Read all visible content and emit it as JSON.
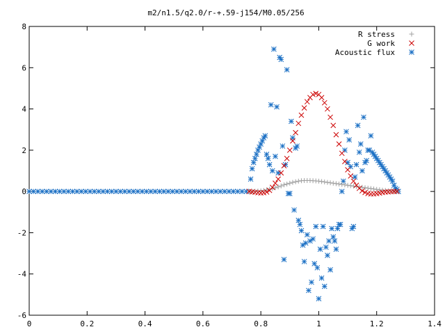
{
  "chart_data": {
    "type": "scatter",
    "title": "m2/n1.5/q2.0/r-+.59-j154/M0.05/256",
    "xlabel": "",
    "ylabel": "",
    "xlim": [
      0,
      1.4
    ],
    "ylim": [
      -6,
      8
    ],
    "xticks": [
      0,
      0.2,
      0.4,
      0.6,
      0.8,
      1,
      1.2,
      1.4
    ],
    "xtick_labels": [
      "0",
      "0.2",
      "0.4",
      "0.6",
      "0.8",
      "1",
      "1.2",
      "1.4"
    ],
    "yticks": [
      -6,
      -4,
      -2,
      0,
      2,
      4,
      6,
      8
    ],
    "ytick_labels": [
      "-6",
      "-4",
      "-2",
      "0",
      "2",
      "4",
      "6",
      "8"
    ],
    "grid": false,
    "legend_position": "top-right",
    "series": [
      {
        "name": "R stress",
        "marker": "plus",
        "color": "#a0a0a0",
        "points": [
          [
            0.76,
            0.0
          ],
          [
            0.77,
            0.0
          ],
          [
            0.78,
            0.01
          ],
          [
            0.79,
            0.02
          ],
          [
            0.8,
            0.03
          ],
          [
            0.81,
            0.05
          ],
          [
            0.82,
            0.08
          ],
          [
            0.83,
            0.11
          ],
          [
            0.84,
            0.14
          ],
          [
            0.85,
            0.18
          ],
          [
            0.86,
            0.22
          ],
          [
            0.87,
            0.27
          ],
          [
            0.88,
            0.32
          ],
          [
            0.89,
            0.36
          ],
          [
            0.9,
            0.4
          ],
          [
            0.91,
            0.44
          ],
          [
            0.92,
            0.47
          ],
          [
            0.93,
            0.5
          ],
          [
            0.94,
            0.52
          ],
          [
            0.95,
            0.53
          ],
          [
            0.96,
            0.53
          ],
          [
            0.97,
            0.53
          ],
          [
            0.98,
            0.52
          ],
          [
            0.99,
            0.51
          ],
          [
            1.0,
            0.5
          ],
          [
            1.01,
            0.48
          ],
          [
            1.02,
            0.46
          ],
          [
            1.03,
            0.44
          ],
          [
            1.04,
            0.42
          ],
          [
            1.05,
            0.4
          ],
          [
            1.06,
            0.38
          ],
          [
            1.07,
            0.36
          ],
          [
            1.08,
            0.34
          ],
          [
            1.09,
            0.32
          ],
          [
            1.1,
            0.3
          ],
          [
            1.11,
            0.28
          ],
          [
            1.12,
            0.26
          ],
          [
            1.13,
            0.24
          ],
          [
            1.14,
            0.22
          ],
          [
            1.15,
            0.2
          ],
          [
            1.16,
            0.18
          ],
          [
            1.17,
            0.16
          ],
          [
            1.18,
            0.14
          ],
          [
            1.19,
            0.12
          ],
          [
            1.2,
            0.1
          ],
          [
            1.21,
            0.08
          ],
          [
            1.22,
            0.06
          ],
          [
            1.23,
            0.05
          ],
          [
            1.24,
            0.03
          ],
          [
            1.25,
            0.02
          ],
          [
            1.26,
            0.01
          ],
          [
            1.27,
            0.0
          ]
        ]
      },
      {
        "name": "G work",
        "marker": "cross",
        "color": "#cc0000",
        "points": [
          [
            0.76,
            0.0
          ],
          [
            0.77,
            -0.02
          ],
          [
            0.78,
            -0.04
          ],
          [
            0.79,
            -0.06
          ],
          [
            0.8,
            -0.07
          ],
          [
            0.81,
            -0.06
          ],
          [
            0.82,
            -0.03
          ],
          [
            0.83,
            0.05
          ],
          [
            0.84,
            0.2
          ],
          [
            0.85,
            0.4
          ],
          [
            0.86,
            0.6
          ],
          [
            0.87,
            0.9
          ],
          [
            0.88,
            1.25
          ],
          [
            0.89,
            1.6
          ],
          [
            0.9,
            2.0
          ],
          [
            0.91,
            2.45
          ],
          [
            0.92,
            2.85
          ],
          [
            0.93,
            3.3
          ],
          [
            0.94,
            3.7
          ],
          [
            0.95,
            4.05
          ],
          [
            0.96,
            4.35
          ],
          [
            0.97,
            4.55
          ],
          [
            0.98,
            4.7
          ],
          [
            0.99,
            4.75
          ],
          [
            1.0,
            4.7
          ],
          [
            1.01,
            4.55
          ],
          [
            1.02,
            4.3
          ],
          [
            1.03,
            4.0
          ],
          [
            1.04,
            3.6
          ],
          [
            1.05,
            3.2
          ],
          [
            1.06,
            2.75
          ],
          [
            1.07,
            2.3
          ],
          [
            1.08,
            1.85
          ],
          [
            1.09,
            1.45
          ],
          [
            1.1,
            1.05
          ],
          [
            1.11,
            0.75
          ],
          [
            1.12,
            0.5
          ],
          [
            1.13,
            0.3
          ],
          [
            1.14,
            0.15
          ],
          [
            1.15,
            0.03
          ],
          [
            1.16,
            -0.05
          ],
          [
            1.17,
            -0.1
          ],
          [
            1.18,
            -0.12
          ],
          [
            1.19,
            -0.12
          ],
          [
            1.2,
            -0.1
          ],
          [
            1.21,
            -0.08
          ],
          [
            1.22,
            -0.05
          ],
          [
            1.23,
            -0.03
          ],
          [
            1.24,
            -0.02
          ],
          [
            1.25,
            -0.01
          ],
          [
            1.26,
            0.0
          ],
          [
            1.27,
            0.0
          ]
        ]
      },
      {
        "name": "Acoustic flux",
        "marker": "star",
        "color": "#1a6fc4",
        "points": [
          [
            0.0,
            0.0
          ],
          [
            0.015,
            0.0
          ],
          [
            0.03,
            0.0
          ],
          [
            0.045,
            0.0
          ],
          [
            0.06,
            0.0
          ],
          [
            0.075,
            0.0
          ],
          [
            0.09,
            0.0
          ],
          [
            0.105,
            0.0
          ],
          [
            0.12,
            0.0
          ],
          [
            0.135,
            0.0
          ],
          [
            0.15,
            0.0
          ],
          [
            0.165,
            0.0
          ],
          [
            0.18,
            0.0
          ],
          [
            0.195,
            0.0
          ],
          [
            0.21,
            0.0
          ],
          [
            0.225,
            0.0
          ],
          [
            0.24,
            0.0
          ],
          [
            0.255,
            0.0
          ],
          [
            0.27,
            0.0
          ],
          [
            0.285,
            0.0
          ],
          [
            0.3,
            0.0
          ],
          [
            0.315,
            0.0
          ],
          [
            0.33,
            0.0
          ],
          [
            0.345,
            0.0
          ],
          [
            0.36,
            0.0
          ],
          [
            0.375,
            0.0
          ],
          [
            0.39,
            0.0
          ],
          [
            0.405,
            0.0
          ],
          [
            0.42,
            0.0
          ],
          [
            0.435,
            0.0
          ],
          [
            0.45,
            0.0
          ],
          [
            0.465,
            0.0
          ],
          [
            0.48,
            0.0
          ],
          [
            0.495,
            0.0
          ],
          [
            0.51,
            0.0
          ],
          [
            0.525,
            0.0
          ],
          [
            0.54,
            0.0
          ],
          [
            0.555,
            0.0
          ],
          [
            0.57,
            0.0
          ],
          [
            0.585,
            0.0
          ],
          [
            0.6,
            0.0
          ],
          [
            0.615,
            0.0
          ],
          [
            0.63,
            0.0
          ],
          [
            0.645,
            0.0
          ],
          [
            0.66,
            0.0
          ],
          [
            0.675,
            0.0
          ],
          [
            0.69,
            0.0
          ],
          [
            0.705,
            0.0
          ],
          [
            0.72,
            0.0
          ],
          [
            0.735,
            0.0
          ],
          [
            0.75,
            0.0
          ],
          [
            0.765,
            0.6
          ],
          [
            0.77,
            1.1
          ],
          [
            0.775,
            1.4
          ],
          [
            0.78,
            1.6
          ],
          [
            0.785,
            1.8
          ],
          [
            0.79,
            2.0
          ],
          [
            0.795,
            2.15
          ],
          [
            0.8,
            2.3
          ],
          [
            0.805,
            2.45
          ],
          [
            0.81,
            2.6
          ],
          [
            0.815,
            2.7
          ],
          [
            0.82,
            1.8
          ],
          [
            0.825,
            1.6
          ],
          [
            0.83,
            1.3
          ],
          [
            0.835,
            4.2
          ],
          [
            0.84,
            1.0
          ],
          [
            0.845,
            6.9
          ],
          [
            0.85,
            1.7
          ],
          [
            0.855,
            4.1
          ],
          [
            0.86,
            0.9
          ],
          [
            0.865,
            6.5
          ],
          [
            0.87,
            6.4
          ],
          [
            0.875,
            2.2
          ],
          [
            0.88,
            -3.3
          ],
          [
            0.885,
            1.3
          ],
          [
            0.89,
            5.9
          ],
          [
            0.895,
            -0.1
          ],
          [
            0.9,
            -0.1
          ],
          [
            0.905,
            3.4
          ],
          [
            0.91,
            2.6
          ],
          [
            0.915,
            -0.9
          ],
          [
            0.92,
            2.1
          ],
          [
            0.925,
            2.2
          ],
          [
            0.93,
            -1.4
          ],
          [
            0.935,
            -1.6
          ],
          [
            0.94,
            -1.9
          ],
          [
            0.945,
            -2.6
          ],
          [
            0.95,
            -3.4
          ],
          [
            0.955,
            -2.5
          ],
          [
            0.96,
            -2.1
          ],
          [
            0.965,
            -4.8
          ],
          [
            0.97,
            -2.4
          ],
          [
            0.975,
            -4.4
          ],
          [
            0.98,
            -2.3
          ],
          [
            0.985,
            -3.5
          ],
          [
            0.99,
            -1.7
          ],
          [
            0.995,
            -3.7
          ],
          [
            1.0,
            -5.2
          ],
          [
            1.005,
            -2.8
          ],
          [
            1.01,
            -4.2
          ],
          [
            1.015,
            -1.7
          ],
          [
            1.02,
            -4.6
          ],
          [
            1.025,
            -2.7
          ],
          [
            1.03,
            -3.1
          ],
          [
            1.035,
            -2.4
          ],
          [
            1.04,
            -3.8
          ],
          [
            1.045,
            -1.8
          ],
          [
            1.05,
            -2.2
          ],
          [
            1.055,
            -2.4
          ],
          [
            1.06,
            -2.8
          ],
          [
            1.065,
            -1.8
          ],
          [
            1.07,
            -1.6
          ],
          [
            1.075,
            -1.6
          ],
          [
            1.08,
            0.0
          ],
          [
            1.085,
            0.5
          ],
          [
            1.09,
            2.0
          ],
          [
            1.095,
            2.9
          ],
          [
            1.1,
            1.4
          ],
          [
            1.105,
            2.5
          ],
          [
            1.11,
            1.2
          ],
          [
            1.115,
            -1.8
          ],
          [
            1.12,
            -1.7
          ],
          [
            1.125,
            0.7
          ],
          [
            1.13,
            1.3
          ],
          [
            1.135,
            3.2
          ],
          [
            1.14,
            1.9
          ],
          [
            1.145,
            2.3
          ],
          [
            1.15,
            1.0
          ],
          [
            1.155,
            3.6
          ],
          [
            1.16,
            1.4
          ],
          [
            1.165,
            1.5
          ],
          [
            1.17,
            2.0
          ],
          [
            1.175,
            2.0
          ],
          [
            1.18,
            2.7
          ],
          [
            1.185,
            1.9
          ],
          [
            1.19,
            1.8
          ],
          [
            1.195,
            1.7
          ],
          [
            1.2,
            1.6
          ],
          [
            1.205,
            1.5
          ],
          [
            1.21,
            1.4
          ],
          [
            1.215,
            1.3
          ],
          [
            1.22,
            1.2
          ],
          [
            1.225,
            1.1
          ],
          [
            1.23,
            1.0
          ],
          [
            1.235,
            0.9
          ],
          [
            1.24,
            0.8
          ],
          [
            1.245,
            0.7
          ],
          [
            1.25,
            0.6
          ],
          [
            1.255,
            0.5
          ],
          [
            1.26,
            0.3
          ],
          [
            1.265,
            0.15
          ],
          [
            1.27,
            0.1
          ],
          [
            1.275,
            0.0
          ]
        ]
      }
    ]
  }
}
